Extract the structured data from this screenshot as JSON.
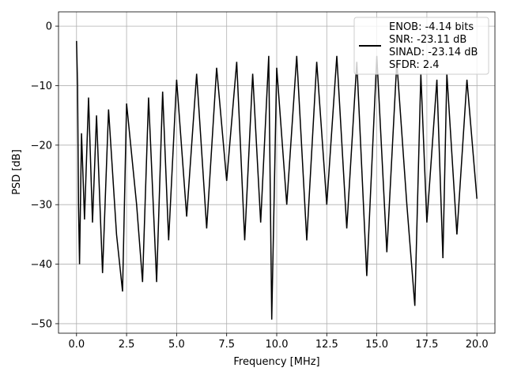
{
  "chart_data": {
    "type": "line",
    "title": "",
    "xlabel": "Frequency [MHz]",
    "ylabel": "PSD [dB]",
    "xlim": [
      -0.9,
      20.9
    ],
    "ylim": [
      -51.6,
      2.4
    ],
    "grid": true,
    "legend_placement": "top-right",
    "x_ticks": [
      0.0,
      2.5,
      5.0,
      7.5,
      10.0,
      12.5,
      15.0,
      17.5,
      20.0
    ],
    "x_tick_labels": [
      "0.0",
      "2.5",
      "5.0",
      "7.5",
      "10.0",
      "12.5",
      "15.0",
      "17.5",
      "20.0"
    ],
    "y_ticks": [
      0,
      -10,
      -20,
      -30,
      -40,
      -50
    ],
    "y_tick_labels": [
      "0",
      "−10",
      "−20",
      "−30",
      "−40",
      "−50"
    ],
    "series": [
      {
        "legend_lines": [
          "ENOB: -4.14 bits",
          "SNR: -23.11 dB",
          "SINAD: -23.14 dB",
          "SFDR: 2.4"
        ],
        "color": "#000000",
        "x": [
          0.0,
          0.05,
          0.1,
          0.15,
          0.25,
          0.4,
          0.6,
          0.8,
          1.0,
          1.3,
          1.6,
          2.0,
          2.3,
          2.5,
          3.0,
          3.3,
          3.6,
          4.0,
          4.3,
          4.6,
          5.0,
          5.5,
          6.0,
          6.5,
          7.0,
          7.5,
          8.0,
          8.4,
          8.8,
          9.2,
          9.6,
          9.75,
          10.0,
          10.5,
          11.0,
          11.5,
          12.0,
          12.5,
          13.0,
          13.5,
          14.0,
          14.5,
          15.0,
          15.5,
          16.0,
          16.5,
          16.9,
          17.2,
          17.5,
          18.0,
          18.3,
          18.5,
          19.0,
          19.5,
          20.0
        ],
        "y": [
          -2.5,
          -10,
          -30,
          -40,
          -18,
          -32.5,
          -12,
          -33,
          -15,
          -41.5,
          -14,
          -35,
          -44.6,
          -13,
          -30,
          -43,
          -12,
          -43,
          -11,
          -36,
          -9,
          -32,
          -8,
          -34,
          -7,
          -26,
          -6,
          -36,
          -8,
          -33,
          -5,
          -49.3,
          -7,
          -30,
          -5,
          -36,
          -6,
          -30,
          -5,
          -34,
          -6,
          -42,
          -5,
          -38,
          -6,
          -30,
          -47,
          -8,
          -33,
          -9,
          -39,
          -8,
          -35,
          -9,
          -29
        ]
      }
    ]
  }
}
